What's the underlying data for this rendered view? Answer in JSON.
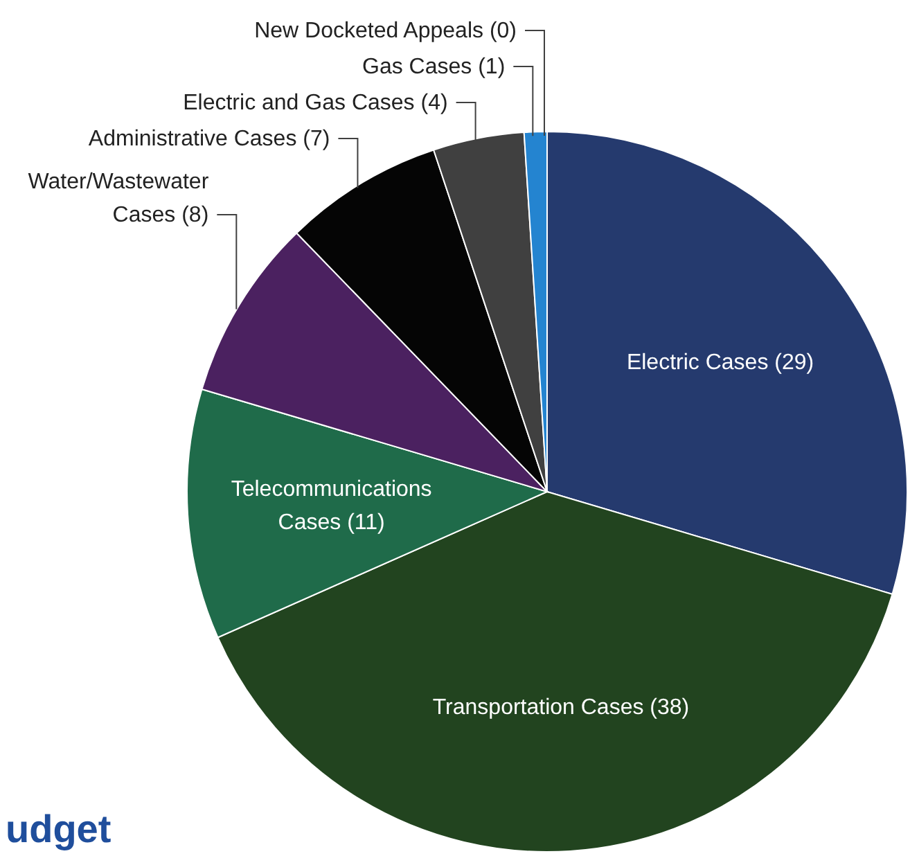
{
  "chart_data": {
    "type": "pie",
    "categories": [
      "Electric Cases (29)",
      "Transportation Cases (38)",
      "Telecommunications Cases (11)",
      "Water/Wastewater Cases (8)",
      "Administrative Cases (7)",
      "Electric and Gas Cases (4)",
      "Gas Cases (1)",
      "New Docketed Appeals (0)"
    ],
    "values": [
      29,
      38,
      11,
      8,
      7,
      4,
      1,
      0
    ],
    "colors": [
      "#253a6e",
      "#22441f",
      "#1f6b4a",
      "#4b2160",
      "#050505",
      "#404040",
      "#2484d0",
      "#d9d9d9"
    ],
    "annotations": [
      "udget"
    ]
  }
}
